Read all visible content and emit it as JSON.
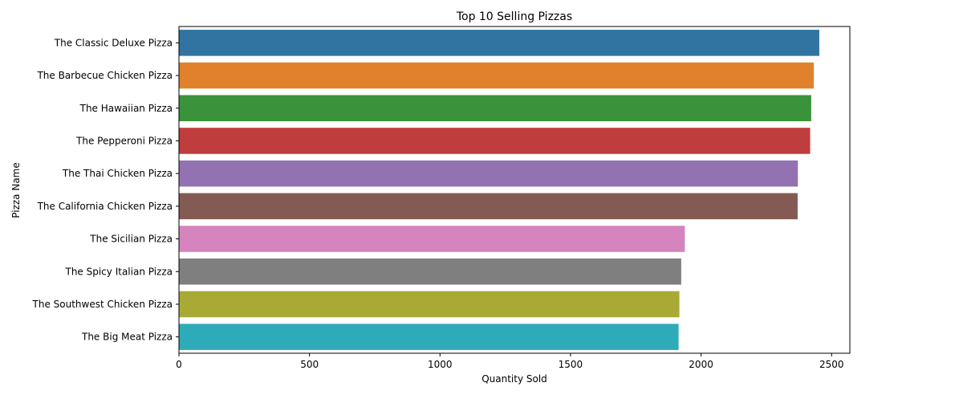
{
  "chart_data": {
    "type": "bar",
    "orientation": "horizontal",
    "title": "Top 10 Selling Pizzas",
    "xlabel": "Quantity Sold",
    "ylabel": "Pizza Name",
    "xlim": [
      0,
      2570
    ],
    "xticks": [
      0,
      500,
      1000,
      1500,
      2000,
      2500
    ],
    "grid": false,
    "legend": "none",
    "categories": [
      "The Classic Deluxe Pizza",
      "The Barbecue Chicken Pizza",
      "The Hawaiian Pizza",
      "The Pepperoni Pizza",
      "The Thai Chicken Pizza",
      "The California Chicken Pizza",
      "The Sicilian Pizza",
      "The Spicy Italian Pizza",
      "The Southwest Chicken Pizza",
      "The Big Meat Pizza"
    ],
    "values": [
      2453,
      2432,
      2422,
      2418,
      2371,
      2370,
      1938,
      1924,
      1917,
      1914
    ],
    "colors": [
      "#3274a1",
      "#e1812c",
      "#3a923a",
      "#c03d3e",
      "#9372b2",
      "#845b53",
      "#d684bd",
      "#7f7f7f",
      "#a9aa35",
      "#2eabb8"
    ]
  }
}
